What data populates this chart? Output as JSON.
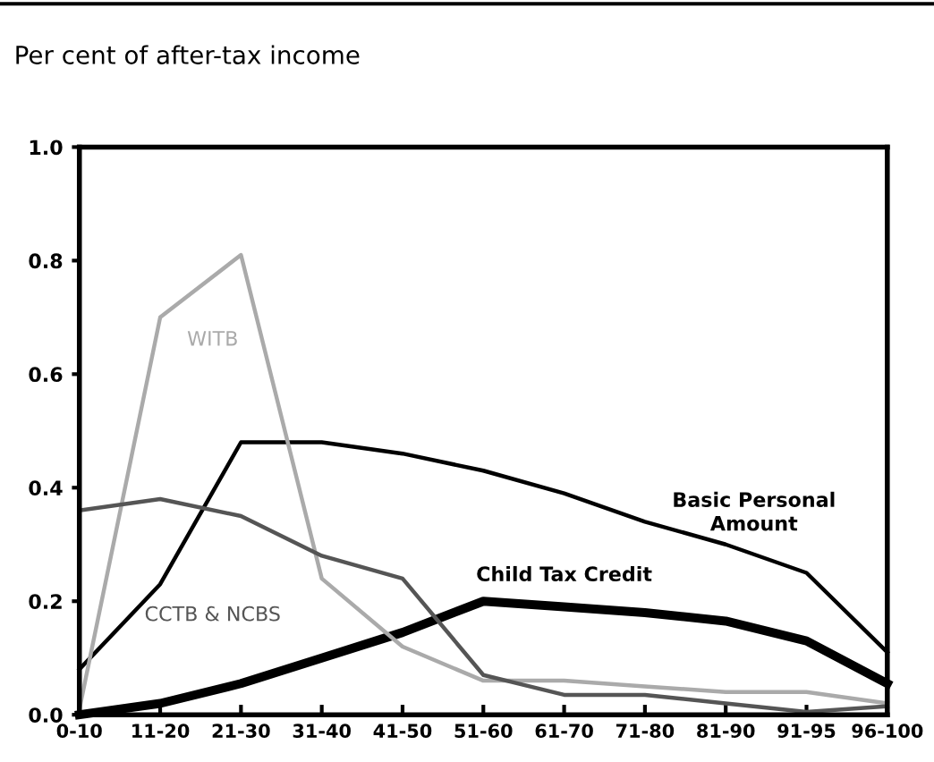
{
  "chart_data": {
    "type": "line",
    "title": "Per cent of after-tax income",
    "categories": [
      "0-10",
      "11-20",
      "21-30",
      "31-40",
      "41-50",
      "51-60",
      "61-70",
      "71-80",
      "81-90",
      "91-95",
      "96-100"
    ],
    "series": [
      {
        "name": "Basic Personal\nAmount",
        "color": "#000000",
        "values": [
          0.08,
          0.23,
          0.48,
          0.48,
          0.46,
          0.43,
          0.39,
          0.34,
          0.3,
          0.25,
          0.11
        ]
      },
      {
        "name": "Child Tax Credit",
        "color": "#000000",
        "values": [
          0.0,
          0.02,
          0.055,
          0.1,
          0.145,
          0.2,
          0.19,
          0.18,
          0.165,
          0.13,
          0.055
        ]
      },
      {
        "name": "WITB",
        "color": "#aaaaaa",
        "values": [
          0.01,
          0.7,
          0.81,
          0.24,
          0.12,
          0.06,
          0.06,
          0.05,
          0.04,
          0.04,
          0.02
        ]
      },
      {
        "name": "CCTB & NCBS",
        "color": "#555555",
        "values": [
          0.36,
          0.38,
          0.35,
          0.28,
          0.24,
          0.07,
          0.035,
          0.035,
          0.02,
          0.005,
          0.015
        ]
      }
    ],
    "ylim": [
      0,
      1.0
    ],
    "yticks": [
      {
        "value": 0,
        "label": "0.0"
      },
      {
        "value": 0.2,
        "label": "0.2"
      },
      {
        "value": 0.4,
        "label": "0.4"
      },
      {
        "value": 0.6,
        "label": "0.6"
      },
      {
        "value": 0.8,
        "label": "0.8"
      },
      {
        "value": 1.0,
        "label": "1.0"
      }
    ],
    "grid": false,
    "legend": false,
    "marker": "none",
    "line_style": "solid"
  }
}
